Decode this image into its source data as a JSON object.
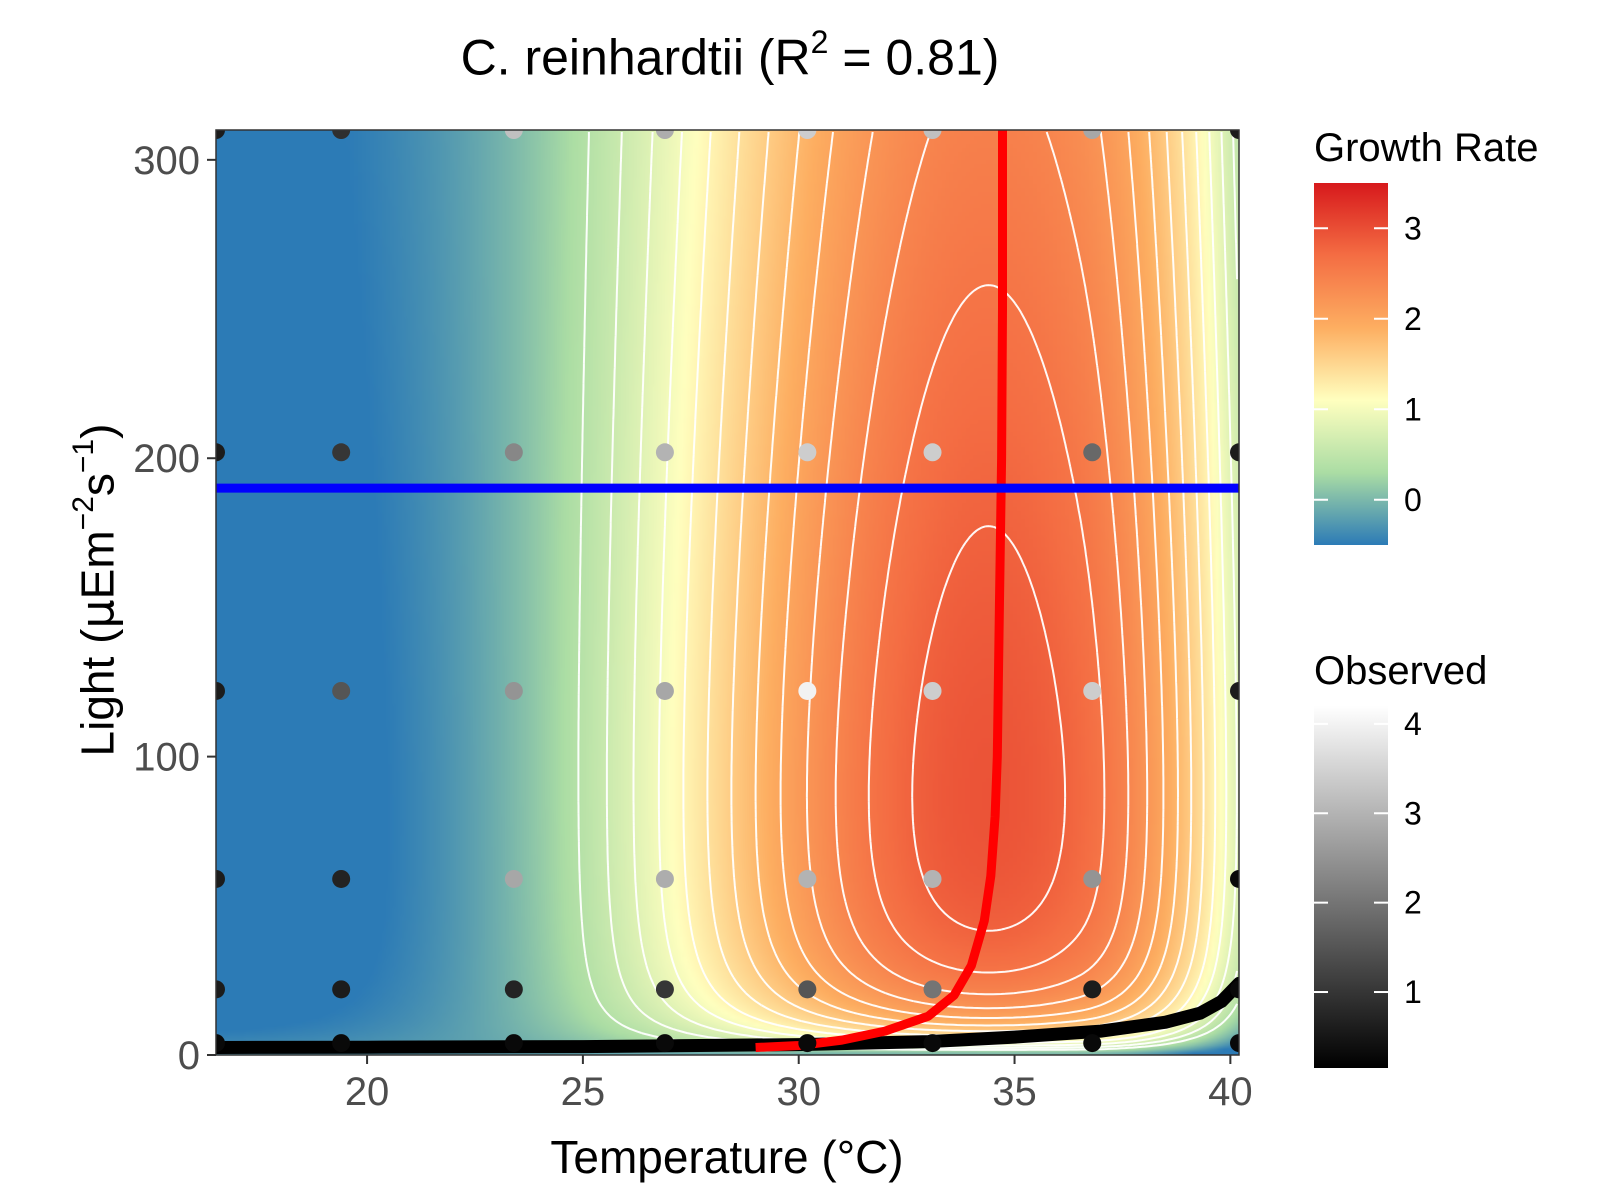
{
  "chart_data": {
    "type": "heatmap",
    "title": "C. reinhardtii (R",
    "title_superscript": "2",
    "title_suffix": " = 0.81)",
    "xlabel": "Temperature (°C)",
    "ylabel_parts": {
      "prefix": "Light (",
      "mu": "μ",
      "unit1": "Em",
      "exp1": "−2",
      "unit2": "s",
      "exp2": "−1",
      "suffix": ")"
    },
    "xlim": [
      16.5,
      40.2
    ],
    "ylim": [
      0,
      310
    ],
    "x_ticks": [
      20,
      25,
      30,
      35,
      40
    ],
    "y_ticks": [
      0,
      100,
      200,
      300
    ],
    "x_tick_labels": [
      "20",
      "25",
      "30",
      "35",
      "40"
    ],
    "y_tick_labels": [
      "0",
      "100",
      "200",
      "300"
    ],
    "grid": false,
    "optimal_temperature_curve": {
      "color": "#ff0000",
      "points": [
        [
          29.0,
          2.5
        ],
        [
          30.0,
          3.2
        ],
        [
          31.0,
          5
        ],
        [
          32.0,
          8
        ],
        [
          33.0,
          13
        ],
        [
          33.6,
          20
        ],
        [
          34.0,
          30
        ],
        [
          34.3,
          45
        ],
        [
          34.45,
          60
        ],
        [
          34.55,
          80
        ],
        [
          34.6,
          100
        ],
        [
          34.65,
          150
        ],
        [
          34.7,
          200
        ],
        [
          34.72,
          250
        ],
        [
          34.72,
          310
        ]
      ]
    },
    "zero_growth_curve": {
      "color": "#000000",
      "points": [
        [
          16.5,
          2.5
        ],
        [
          20,
          2.6
        ],
        [
          25,
          2.8
        ],
        [
          30,
          3.5
        ],
        [
          33,
          4.5
        ],
        [
          35,
          6
        ],
        [
          37,
          8
        ],
        [
          38.5,
          11
        ],
        [
          39.3,
          14
        ],
        [
          39.8,
          18
        ],
        [
          40.2,
          24
        ]
      ]
    },
    "optimal_light_line": {
      "color": "#0000ff",
      "y": 190
    },
    "contour_peak": {
      "temperature": 34.4,
      "light": 170
    },
    "observed_points": {
      "temperatures": [
        16.5,
        19.4,
        23.4,
        26.9,
        30.2,
        33.1,
        36.8,
        40.2
      ],
      "lights": [
        4,
        22,
        59,
        122,
        202,
        310
      ],
      "values": [
        [
          0.3,
          0.3,
          0.3,
          0.3,
          0.3,
          0.3,
          0.3,
          0.3
        ],
        [
          0.6,
          0.6,
          0.7,
          1.0,
          1.5,
          2.0,
          0.6,
          0.3
        ],
        [
          0.6,
          0.7,
          2.8,
          2.9,
          3.0,
          3.0,
          2.5,
          0.3
        ],
        [
          0.6,
          1.5,
          2.5,
          2.8,
          4.0,
          3.4,
          3.4,
          0.6
        ],
        [
          0.6,
          1.0,
          2.3,
          3.0,
          3.4,
          3.4,
          1.8,
          0.6
        ],
        [
          0.6,
          0.9,
          3.2,
          2.9,
          3.4,
          3.2,
          2.8,
          0.6
        ]
      ]
    },
    "legends": [
      {
        "title": "Growth Rate",
        "scale": "spectral",
        "range": [
          -0.5,
          3.5
        ],
        "breaks": [
          0,
          1,
          2,
          3
        ],
        "break_labels": [
          "0",
          "1",
          "2",
          "3"
        ],
        "colors": [
          "#2c7bb6",
          "#abdda4",
          "#ffffbf",
          "#fdae61",
          "#f46d43",
          "#d7191c"
        ]
      },
      {
        "title": "Observed",
        "scale": "grey",
        "range": [
          0.15,
          4.2
        ],
        "breaks": [
          1,
          2,
          3,
          4
        ],
        "break_labels": [
          "1",
          "2",
          "3",
          "4"
        ],
        "colors": [
          "#000000",
          "#ffffff"
        ]
      }
    ]
  }
}
